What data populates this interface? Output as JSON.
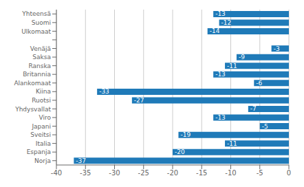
{
  "chart_data": {
    "type": "bar",
    "orientation": "horizontal",
    "categories": [
      "Yhteensä",
      "Suomi",
      "Ulkomaat",
      null,
      "Venäjä",
      "Saksa",
      "Ranska",
      "Britannia",
      "Alankomaat",
      "Kiina",
      "Ruotsi",
      "Yhdysvallat",
      "Viro",
      "Japani",
      "Sveitsi",
      "Italia",
      "Espanja",
      "Norja"
    ],
    "values": [
      -13,
      -12,
      -14,
      null,
      -3,
      -9,
      -11,
      -13,
      -6,
      -33,
      -27,
      -7,
      -13,
      -5,
      -19,
      -11,
      -20,
      -37
    ],
    "color": "#1f7ab8",
    "xlim": [
      -40,
      0
    ],
    "xticks": [
      -40,
      -35,
      -30,
      -25,
      -20,
      -15,
      -10,
      -5,
      0
    ],
    "grid": true,
    "data_labels": true
  }
}
